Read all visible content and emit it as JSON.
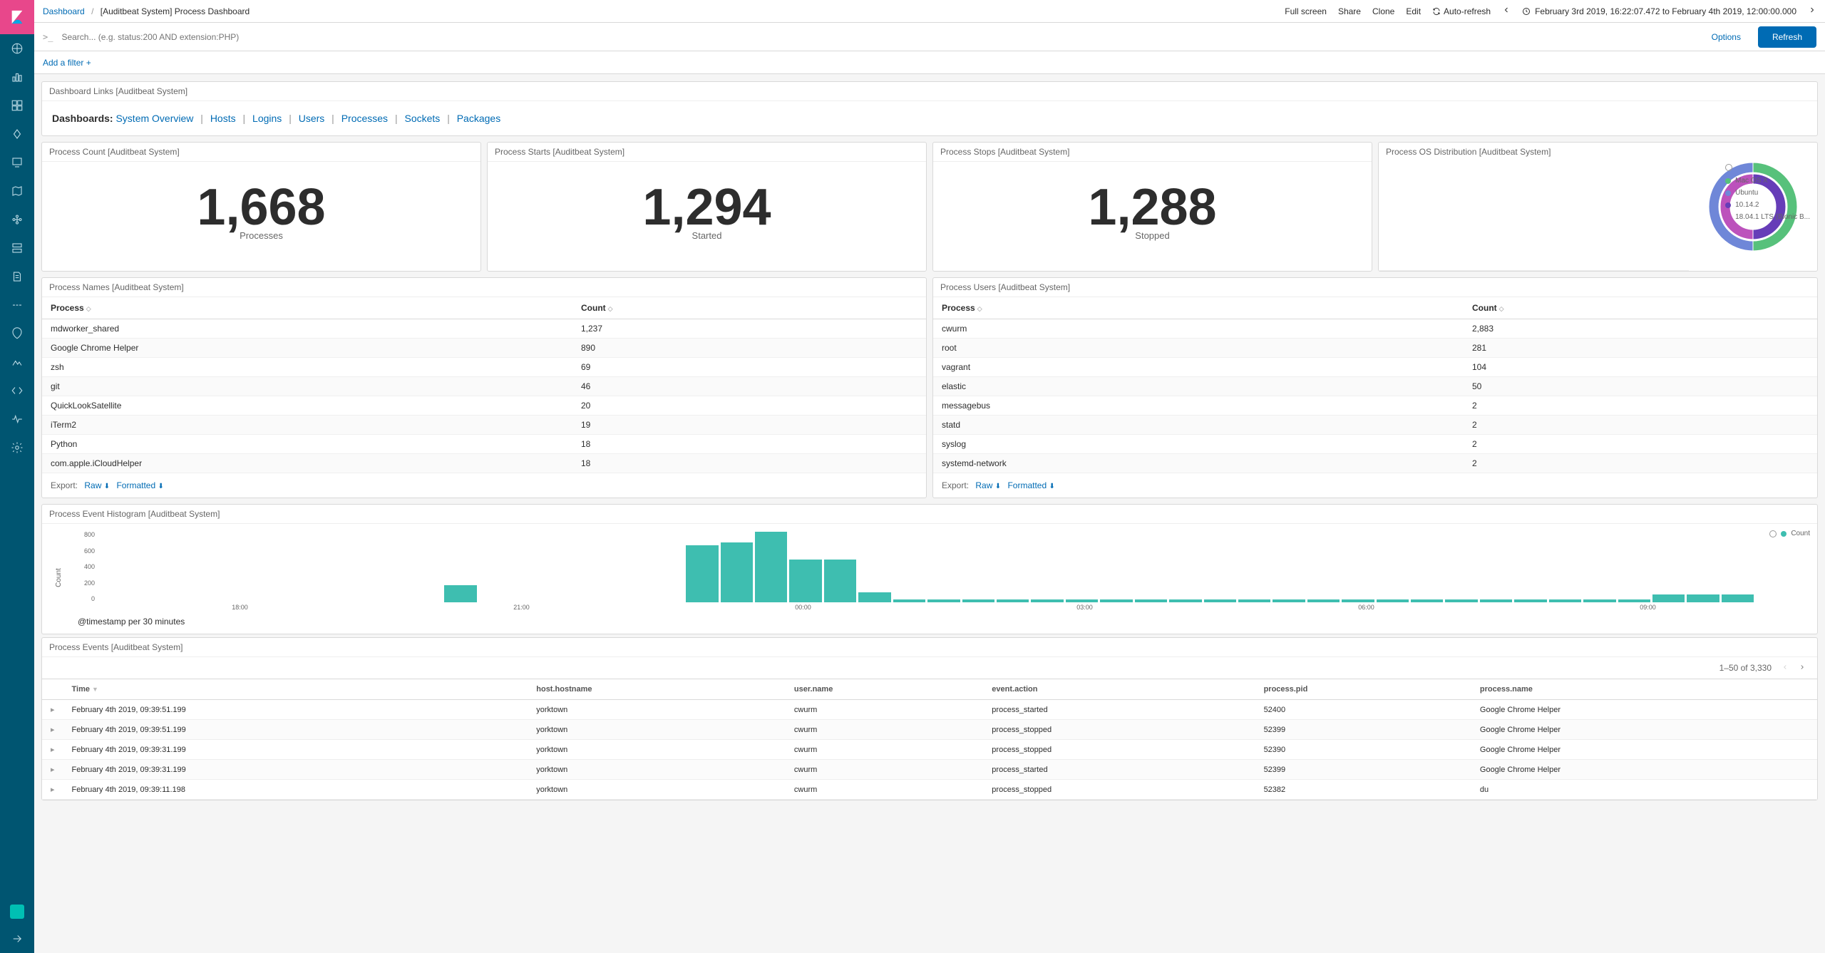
{
  "breadcrumb": {
    "root": "Dashboard",
    "current": "[Auditbeat System] Process Dashboard"
  },
  "topbar": {
    "fullscreen": "Full screen",
    "share": "Share",
    "clone": "Clone",
    "edit": "Edit",
    "autorefresh": "Auto-refresh",
    "time_range": "February 3rd 2019, 16:22:07.472 to February 4th 2019, 12:00:00.000"
  },
  "search": {
    "placeholder": "Search... (e.g. status:200 AND extension:PHP)",
    "options": "Options",
    "refresh": "Refresh"
  },
  "filter": {
    "add": "Add a filter",
    "plus": "+"
  },
  "links_panel": {
    "title": "Dashboard Links [Auditbeat System]",
    "label": "Dashboards:",
    "items": [
      "System Overview",
      "Hosts",
      "Logins",
      "Users",
      "Processes",
      "Sockets",
      "Packages"
    ]
  },
  "metrics": [
    {
      "title": "Process Count [Auditbeat System]",
      "value": "1,668",
      "label": "Processes"
    },
    {
      "title": "Process Starts [Auditbeat System]",
      "value": "1,294",
      "label": "Started"
    },
    {
      "title": "Process Stops [Auditbeat System]",
      "value": "1,288",
      "label": "Stopped"
    }
  ],
  "donut": {
    "title": "Process OS Distribution [Auditbeat System]",
    "outer": [
      {
        "label": "Mac OS X",
        "color": "#57c17b",
        "value": 50
      },
      {
        "label": "Ubuntu",
        "color": "#6f87d8",
        "value": 50
      }
    ],
    "inner": [
      {
        "label": "10.14.2",
        "color": "#663db8",
        "value": 50
      },
      {
        "label": "18.04.1 LTS (Bionic B...",
        "color": "#bc52bc",
        "value": 50
      }
    ],
    "bg": "#ffffff"
  },
  "process_names": {
    "title": "Process Names [Auditbeat System]",
    "cols": [
      "Process",
      "Count"
    ],
    "rows": [
      [
        "mdworker_shared",
        "1,237"
      ],
      [
        "Google Chrome Helper",
        "890"
      ],
      [
        "zsh",
        "69"
      ],
      [
        "git",
        "46"
      ],
      [
        "QuickLookSatellite",
        "20"
      ],
      [
        "iTerm2",
        "19"
      ],
      [
        "Python",
        "18"
      ],
      [
        "com.apple.iCloudHelper",
        "18"
      ]
    ],
    "export_label": "Export:",
    "raw": "Raw",
    "formatted": "Formatted"
  },
  "process_users": {
    "title": "Process Users [Auditbeat System]",
    "cols": [
      "Process",
      "Count"
    ],
    "rows": [
      [
        "cwurm",
        "2,883"
      ],
      [
        "root",
        "281"
      ],
      [
        "vagrant",
        "104"
      ],
      [
        "elastic",
        "50"
      ],
      [
        "messagebus",
        "2"
      ],
      [
        "statd",
        "2"
      ],
      [
        "syslog",
        "2"
      ],
      [
        "systemd-network",
        "2"
      ]
    ],
    "export_label": "Export:",
    "raw": "Raw",
    "formatted": "Formatted"
  },
  "histogram": {
    "title": "Process Event Histogram [Auditbeat System]",
    "ylabel": "Count",
    "yticks": [
      "800",
      "600",
      "400",
      "200",
      "0"
    ],
    "xlabel": "@timestamp per 30 minutes",
    "xticks": [
      "18:00",
      "21:00",
      "00:00",
      "03:00",
      "06:00",
      "09:00"
    ],
    "bar_color": "#3ebeb0",
    "legend": "Count",
    "values": [
      0,
      0,
      0,
      0,
      0,
      0,
      0,
      0,
      0,
      0,
      220,
      0,
      0,
      0,
      0,
      0,
      0,
      720,
      760,
      890,
      540,
      540,
      130,
      40,
      35,
      35,
      35,
      35,
      35,
      35,
      35,
      35,
      35,
      35,
      35,
      35,
      35,
      35,
      35,
      35,
      35,
      35,
      35,
      35,
      35,
      100,
      100,
      100,
      0
    ],
    "ymax": 900
  },
  "events": {
    "title": "Process Events [Auditbeat System]",
    "pager": "1–50 of 3,330",
    "cols": [
      "Time",
      "host.hostname",
      "user.name",
      "event.action",
      "process.pid",
      "process.name"
    ],
    "rows": [
      [
        "February 4th 2019, 09:39:51.199",
        "yorktown",
        "cwurm",
        "process_started",
        "52400",
        "Google Chrome Helper"
      ],
      [
        "February 4th 2019, 09:39:51.199",
        "yorktown",
        "cwurm",
        "process_stopped",
        "52399",
        "Google Chrome Helper"
      ],
      [
        "February 4th 2019, 09:39:31.199",
        "yorktown",
        "cwurm",
        "process_stopped",
        "52390",
        "Google Chrome Helper"
      ],
      [
        "February 4th 2019, 09:39:31.199",
        "yorktown",
        "cwurm",
        "process_started",
        "52399",
        "Google Chrome Helper"
      ],
      [
        "February 4th 2019, 09:39:11.198",
        "yorktown",
        "cwurm",
        "process_stopped",
        "52382",
        "du"
      ]
    ]
  }
}
